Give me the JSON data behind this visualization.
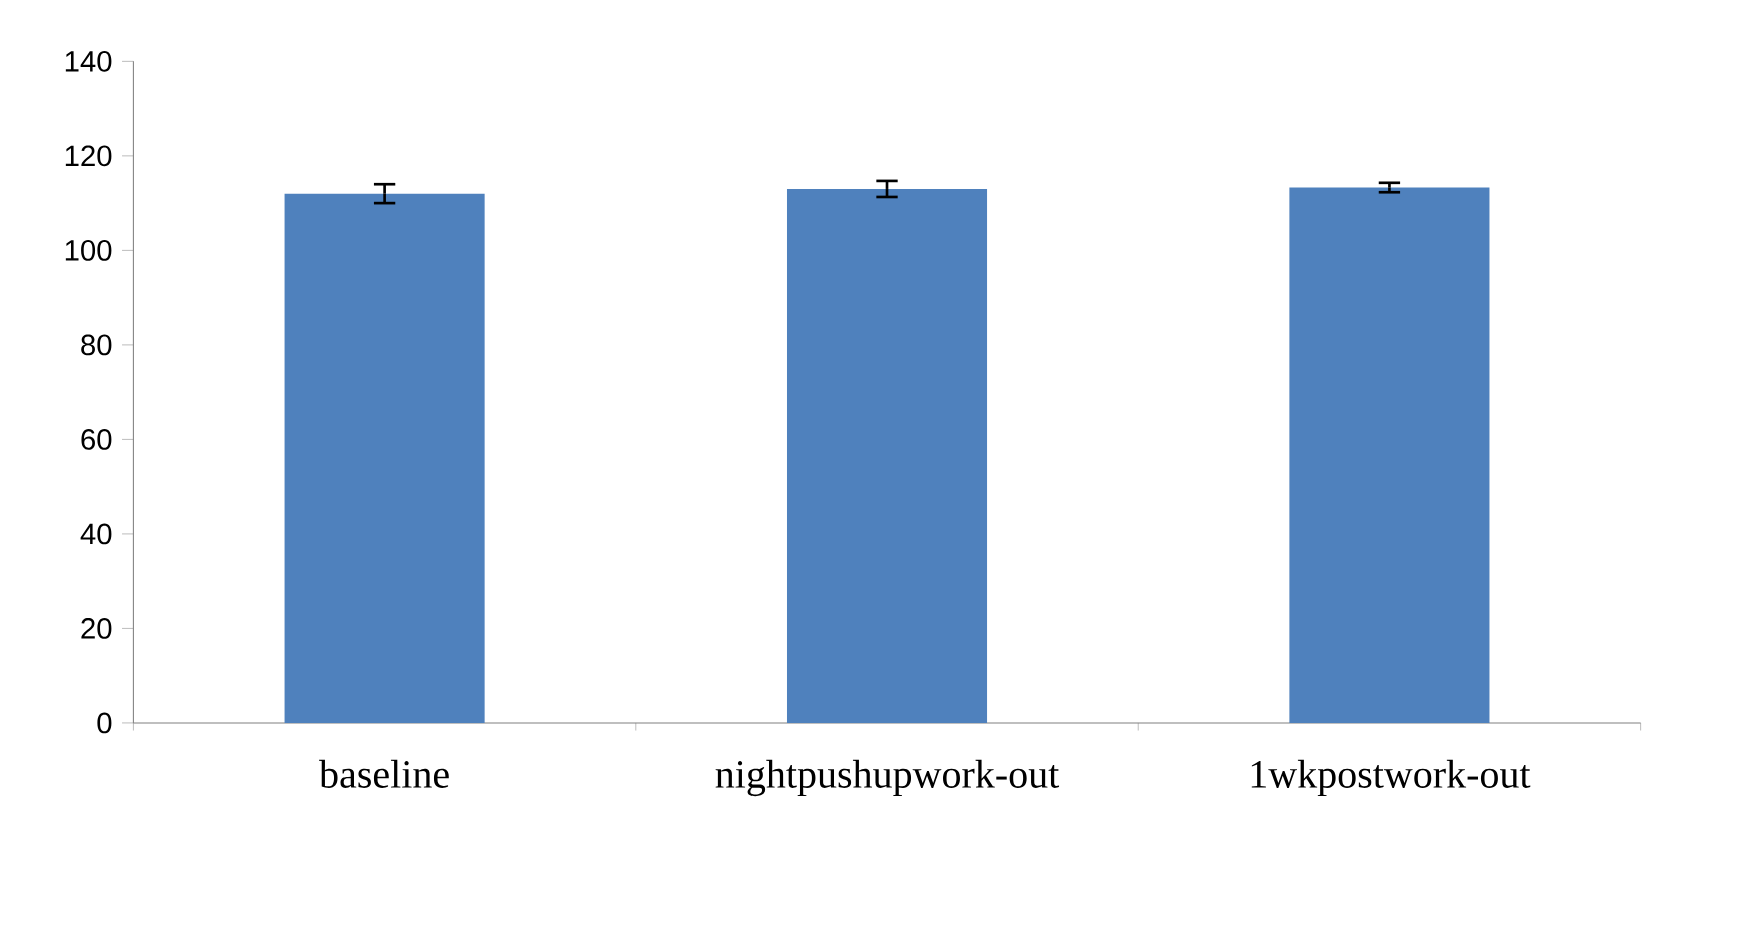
{
  "chart_data": {
    "type": "bar",
    "categories": [
      "baseline",
      "nightpushupwork-out",
      "1wkpostwork-out"
    ],
    "values": [
      112,
      113,
      113.3
    ],
    "errors": [
      2,
      1.7,
      1
    ],
    "color": "#4f81bd",
    "ylim": [
      0,
      140
    ],
    "yticks": [
      0,
      20,
      40,
      60,
      80,
      100,
      120,
      140
    ],
    "grid": false
  }
}
